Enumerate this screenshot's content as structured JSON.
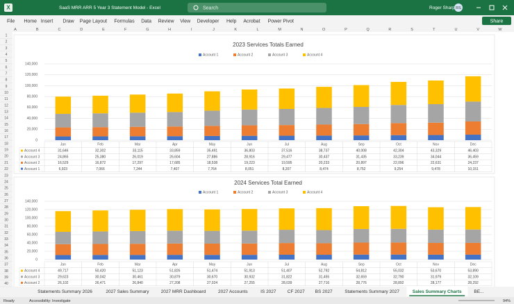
{
  "app": {
    "title": "SaaS MRR ARR 5 Year 3 Statement Model - Excel",
    "search": "Search",
    "user": "Roger Sharp",
    "initials": "RS",
    "menu": [
      "File",
      "Home",
      "Insert",
      "Draw",
      "Page Layout",
      "Formulas",
      "Data",
      "Review",
      "View",
      "Developer",
      "Help",
      "Acrobat",
      "Power Pivot"
    ],
    "share": "Share",
    "columns": [
      "A",
      "B",
      "C",
      "D",
      "E",
      "F",
      "G",
      "H",
      "I",
      "J",
      "K",
      "L",
      "M",
      "N",
      "O",
      "P",
      "Q",
      "R",
      "S",
      "T",
      "U",
      "V",
      "W"
    ],
    "rows": [
      1,
      2,
      3,
      4,
      5,
      6,
      7,
      8,
      9,
      10,
      11,
      12,
      13,
      14,
      15,
      16,
      17,
      18,
      19,
      20,
      21,
      22,
      23,
      24,
      25,
      26,
      27,
      28,
      29,
      30,
      31,
      32,
      33,
      34,
      35,
      36,
      37,
      38,
      39,
      40
    ],
    "sheets": [
      "Statements Summary 2026",
      "2027 Sales Summary",
      "2027 MRR Dashboard",
      "2027 Accounts",
      "IS 2027",
      "CF 2027",
      "BS 2027",
      "Statements Summary 2027",
      "Sales Summary Charts",
      "BE..."
    ],
    "active_sheet": "Sales Summary Charts",
    "status": {
      "ready": "Ready",
      "accessibility": "Accessibility: Investigate",
      "zoom": "94%"
    }
  },
  "chart_data": [
    {
      "type": "stacked_bar",
      "title": "2023 Services Totals Earned",
      "categories": [
        "Jan",
        "Feb",
        "Mar",
        "Apr",
        "May",
        "Jun",
        "Jul",
        "Aug",
        "Sep",
        "Oct",
        "Nov",
        "Dec"
      ],
      "series": [
        {
          "name": "Account 1",
          "color": "#4472c4",
          "values": [
            6923,
            7066,
            7244,
            7407,
            7764,
            8051,
            8207,
            8474,
            8752,
            9254,
            9478,
            10151
          ],
          "value_labels": [
            "6,923",
            "7,066",
            "7,244",
            "7,407",
            "7,764",
            "8,051",
            "8,207",
            "8,474",
            "8,752",
            "9,254",
            "9,478",
            "10,151"
          ]
        },
        {
          "name": "Account 2",
          "color": "#ed7d31",
          "values": [
            16529,
            16872,
            17297,
            17685,
            18538,
            19223,
            19595,
            20233,
            20897,
            22096,
            22631,
            24237
          ],
          "value_labels": [
            "16,529",
            "16,872",
            "17,297",
            "17,685",
            "18,538",
            "19,223",
            "19,595",
            "20,233",
            "20,897",
            "22,096",
            "22,631",
            "24,237"
          ]
        },
        {
          "name": "Account 3",
          "color": "#a5a5a5",
          "values": [
            24865,
            25380,
            26019,
            26604,
            27886,
            28916,
            29477,
            30437,
            31435,
            33239,
            34044,
            36459
          ],
          "value_labels": [
            "24,865",
            "25,380",
            "26,019",
            "26,604",
            "27,886",
            "28,916",
            "29,477",
            "30,437",
            "31,435",
            "33,239",
            "34,044",
            "36,459"
          ]
        },
        {
          "name": "Account 4",
          "color": "#ffc000",
          "values": [
            31646,
            32302,
            33115,
            33859,
            35491,
            36803,
            37516,
            38737,
            40008,
            42304,
            43329,
            46403
          ],
          "value_labels": [
            "31,646",
            "32,302",
            "33,115",
            "33,859",
            "35,491",
            "36,803",
            "37,516",
            "38,737",
            "40,008",
            "42,304",
            "43,329",
            "46,403"
          ]
        }
      ],
      "ylim": [
        0,
        140000
      ],
      "yticks": [
        0,
        {
          "value": 20000,
          "label": "20,000"
        },
        {
          "value": 40000,
          "label": "40,000"
        },
        {
          "value": 60000,
          "label": "60,000"
        },
        {
          "value": 80000,
          "label": "80,000"
        },
        {
          "value": 100000,
          "label": "100,000"
        },
        {
          "value": 120000,
          "label": "120,000"
        },
        {
          "value": 140000,
          "label": "140,000"
        }
      ],
      "grid": true,
      "legend": "top"
    },
    {
      "type": "stacked_bar",
      "title": "2024 Services Total Earned",
      "categories": [
        "Jan",
        "Feb",
        "Mar",
        "Apr",
        "May",
        "Jun",
        "Jul",
        "Aug",
        "Sep",
        "Oct",
        "Nov",
        "Dec"
      ],
      "series": [
        {
          "name": "Account 1",
          "color": "#4472c4",
          "values": [
            10900,
            11100,
            11200,
            11400,
            11300,
            11400,
            11700,
            11600,
            12000,
            12100,
            11800,
            11800
          ]
        },
        {
          "name": "Account 2",
          "color": "#ed7d31",
          "values": [
            26102,
            26471,
            26840,
            27208,
            27024,
            27255,
            28039,
            27716,
            28776,
            28892,
            28177,
            28292
          ],
          "value_labels": [
            "26,102",
            "26,471",
            "26,840",
            "27,208",
            "27,024",
            "27,255",
            "28,039",
            "27,716",
            "28,776",
            "28,892",
            "28,177",
            "28,292"
          ]
        },
        {
          "name": "Account 3",
          "color": "#a5a5a5",
          "values": [
            29623,
            30042,
            30461,
            30879,
            30670,
            30932,
            31822,
            31455,
            32659,
            32790,
            31979,
            32109
          ],
          "value_labels": [
            "29,623",
            "30,042",
            "30,461",
            "30,879",
            "30,670",
            "30,932",
            "31,822",
            "31,455",
            "32,659",
            "32,790",
            "31,979",
            "32,109"
          ]
        },
        {
          "name": "Account 4",
          "color": "#ffc000",
          "values": [
            49717,
            50420,
            51123,
            51826,
            51474,
            51913,
            51407,
            52792,
            54812,
            55032,
            53670,
            53890
          ],
          "value_labels": [
            "49,717",
            "50,420",
            "51,123",
            "51,826",
            "51,474",
            "51,913",
            "51,407",
            "52,792",
            "54,812",
            "55,032",
            "53,670",
            "53,890"
          ]
        }
      ],
      "ylim": [
        0,
        140000
      ],
      "yticks": [
        0,
        {
          "value": 20000,
          "label": "20,000"
        },
        {
          "value": 40000,
          "label": "40,000"
        },
        {
          "value": 60000,
          "label": "60,000"
        },
        {
          "value": 80000,
          "label": "80,000"
        },
        {
          "value": 100000,
          "label": "100,000"
        },
        {
          "value": 120000,
          "label": "120,000"
        },
        {
          "value": 140000,
          "label": "140,000"
        }
      ],
      "grid": true,
      "legend": "top"
    }
  ]
}
